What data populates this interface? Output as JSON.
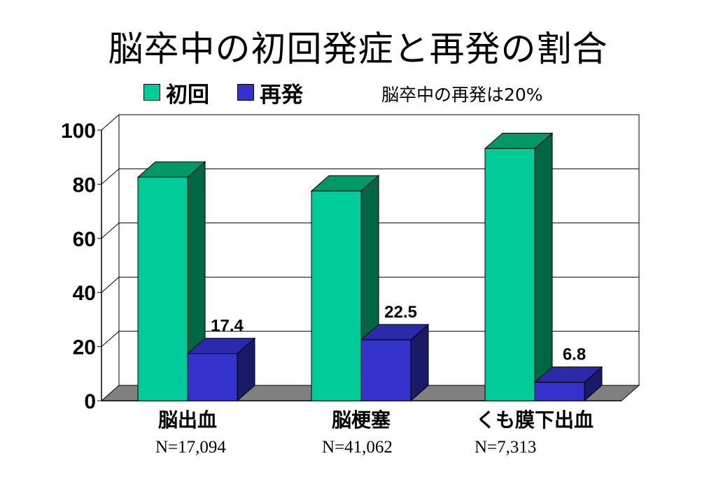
{
  "title": "脳卒中の初回発症と再発の割合",
  "note": "脳卒中の再発は20%",
  "legend": [
    {
      "label": "初回",
      "color": "#00cc99"
    },
    {
      "label": "再発",
      "color": "#3333cc"
    }
  ],
  "sample_sizes": [
    "N=17,094",
    "N=41,062",
    "N=7,313"
  ],
  "chart_data": {
    "type": "bar",
    "title": "脳卒中の初回発症と再発の割合",
    "categories": [
      "脳出血",
      "脳梗塞",
      "くも膜下出血"
    ],
    "series": [
      {
        "name": "初回",
        "values": [
          82.6,
          77.5,
          93.2
        ],
        "color": "#00cc99"
      },
      {
        "name": "再発",
        "values": [
          17.4,
          22.5,
          6.8
        ],
        "color": "#3333cc"
      }
    ],
    "data_labels": [
      "17.4",
      "22.5",
      "6.8"
    ],
    "y_ticks": [
      "0",
      "20",
      "40",
      "60",
      "80",
      "100"
    ],
    "ylim": [
      0,
      100
    ],
    "grid": true,
    "legend_position": "top-left",
    "three_d": true
  }
}
